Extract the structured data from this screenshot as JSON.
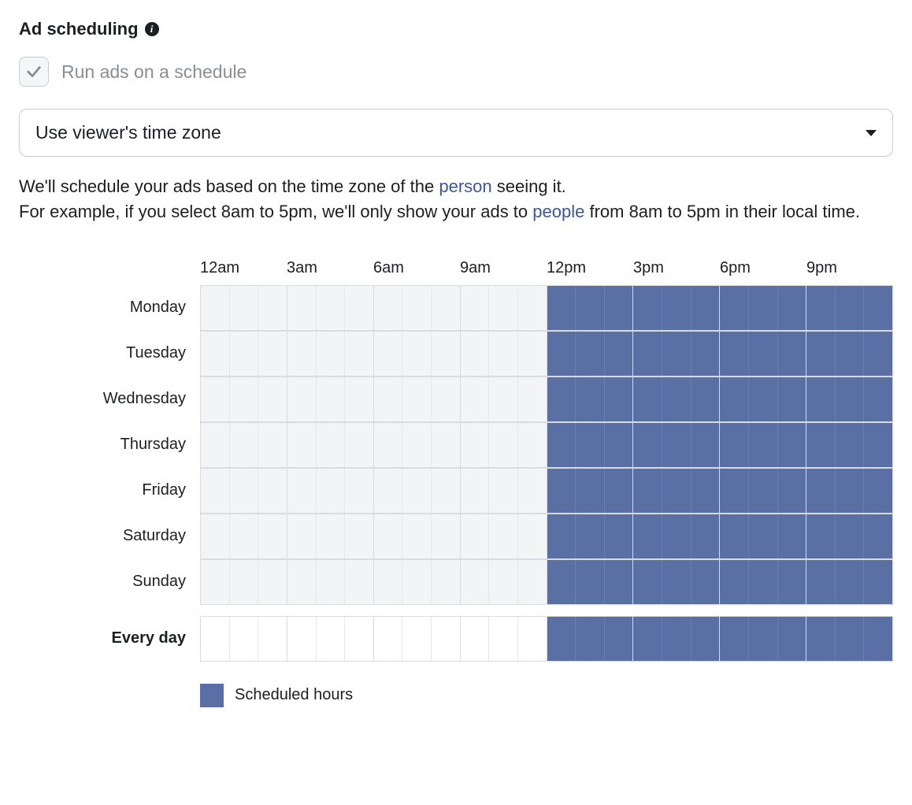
{
  "header": {
    "title": "Ad scheduling"
  },
  "checkbox": {
    "checked": true,
    "label": "Run ads on a schedule"
  },
  "dropdown": {
    "selected": "Use viewer's time zone"
  },
  "description": {
    "part1": "We'll schedule your ads based on the time zone of the ",
    "link1": "person",
    "part2": " seeing it.",
    "part3": "For example, if you select 8am to 5pm, we'll only show your ads to ",
    "link2": "people",
    "part4": " from 8am to 5pm in their local time."
  },
  "schedule": {
    "time_labels": [
      "12am",
      "3am",
      "6am",
      "9am",
      "12pm",
      "3pm",
      "6pm",
      "9pm"
    ],
    "days": [
      "Monday",
      "Tuesday",
      "Wednesday",
      "Thursday",
      "Friday",
      "Saturday",
      "Sunday"
    ],
    "summary_label": "Every day",
    "scheduled_start_hour": 12,
    "scheduled_end_hour": 24,
    "colors": {
      "scheduled": "#5a70a4",
      "unscheduled": "#f2f4f5",
      "summary_unscheduled": "#ffffff",
      "grid_border": "#d9dbde",
      "cell_divider_light": "#e6e8ea"
    }
  },
  "legend": {
    "label": "Scheduled hours",
    "swatch_color": "#5a70a4"
  }
}
